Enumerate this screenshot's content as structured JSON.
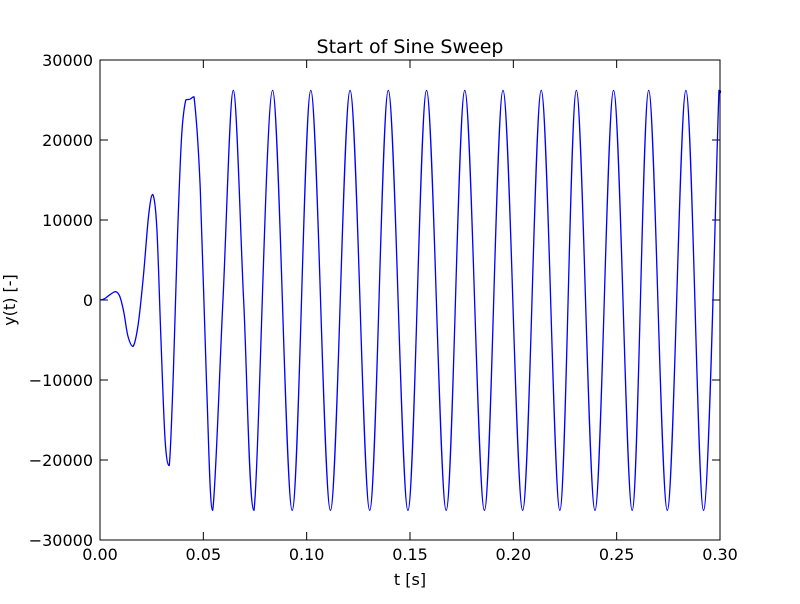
{
  "chart_data": {
    "type": "line",
    "title": "Start of Sine Sweep",
    "xlabel": "t [s]",
    "ylabel": "y(t) [-]",
    "xlim": [
      0.0,
      0.3
    ],
    "ylim": [
      -30000,
      30000
    ],
    "grid": false,
    "legend": "none",
    "x_ticks": [
      0.0,
      0.05,
      0.1,
      0.15,
      0.2,
      0.25,
      0.3
    ],
    "x_tick_labels": [
      "0.00",
      "0.05",
      "0.10",
      "0.15",
      "0.20",
      "0.25",
      "0.30"
    ],
    "y_ticks": [
      -30000,
      -20000,
      -10000,
      0,
      10000,
      20000,
      30000
    ],
    "y_tick_labels": [
      "−30000",
      "−20000",
      "−10000",
      "0",
      "10000",
      "20000",
      "30000"
    ],
    "series": [
      {
        "color": "#0000ff",
        "x": [
          0.0,
          0.0015,
          0.003,
          0.005,
          0.0075,
          0.0095,
          0.0115,
          0.0135,
          0.016,
          0.0185,
          0.021,
          0.0235,
          0.0255,
          0.0275,
          0.0295,
          0.0315,
          0.0335,
          0.0355,
          0.0375,
          0.0395,
          0.0415,
          0.0435,
          0.0455,
          0.0485,
          0.0515,
          0.0545,
          0.0595,
          0.0645,
          0.0695,
          0.0745,
          0.0835,
          0.093,
          0.102,
          0.1115,
          0.121,
          0.1305,
          0.1395,
          0.149,
          0.158,
          0.1675,
          0.1765,
          0.186,
          0.195,
          0.2045,
          0.2135,
          0.2225,
          0.2305,
          0.2395,
          0.2485,
          0.2575,
          0.2655,
          0.2745,
          0.2835,
          0.292,
          0.2995,
          0.3
        ],
        "y": [
          0,
          80,
          300,
          700,
          1050,
          500,
          -1500,
          -4500,
          -5800,
          -3000,
          3000,
          10500,
          13200,
          9000,
          -5000,
          -17500,
          -20700,
          -9000,
          8000,
          20500,
          25000,
          25100,
          25400,
          14000,
          -10000,
          -26300,
          0,
          26200,
          0,
          -26300,
          26200,
          -26300,
          26200,
          -26300,
          26200,
          -26300,
          26200,
          -26300,
          26200,
          -26300,
          26200,
          -26300,
          26200,
          -26300,
          26200,
          -26300,
          26200,
          -26300,
          26200,
          -26300,
          26200,
          -26300,
          26200,
          -26300,
          26200,
          25800
        ]
      }
    ]
  }
}
